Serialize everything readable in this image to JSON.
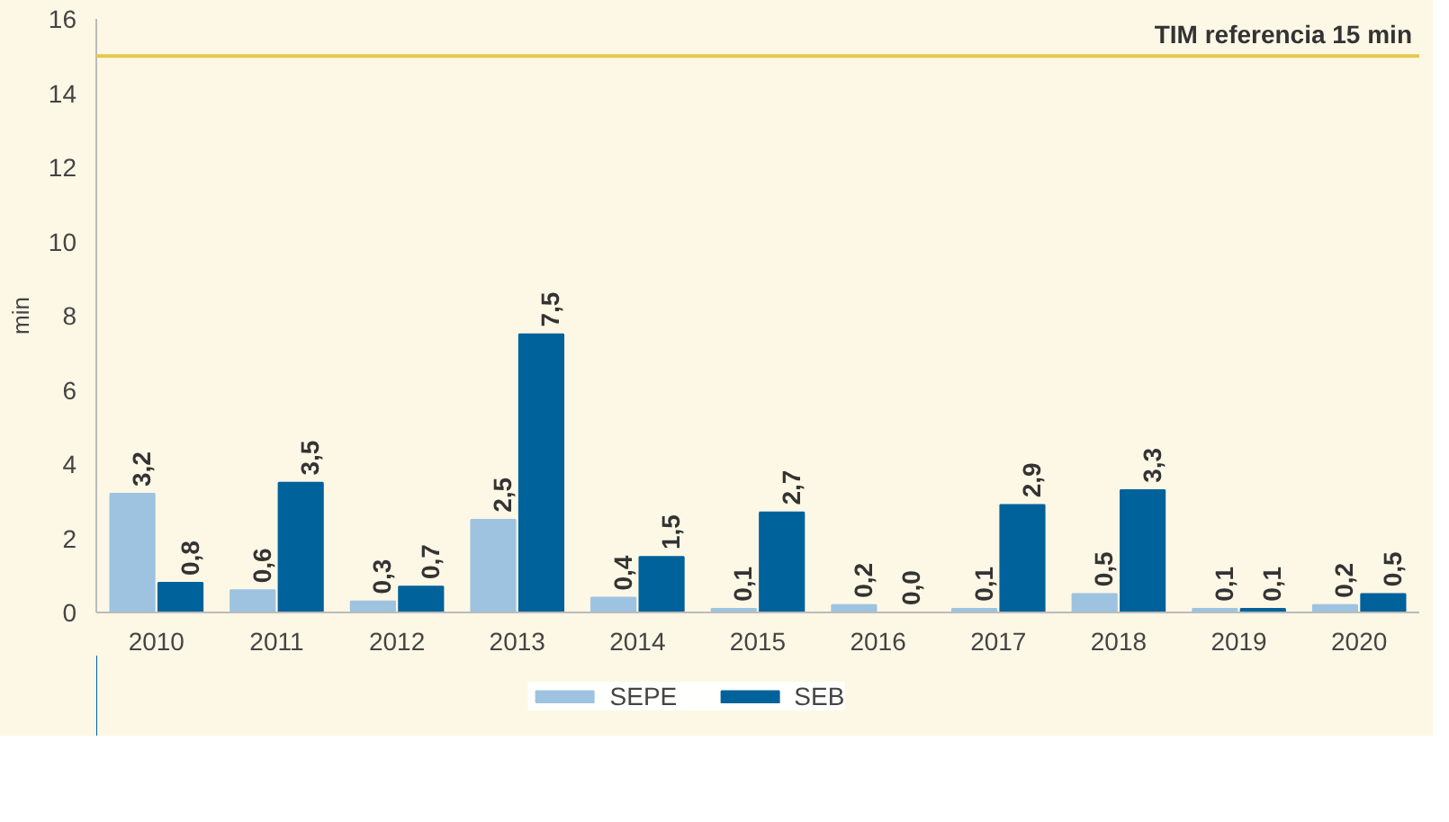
{
  "chart_data": {
    "type": "bar",
    "ylabel": "min",
    "categories": [
      "2010",
      "2011",
      "2012",
      "2013",
      "2014",
      "2015",
      "2016",
      "2017",
      "2018",
      "2019",
      "2020"
    ],
    "series": [
      {
        "name": "SEPE",
        "color": "#9dc3e0",
        "values": [
          3.2,
          0.6,
          0.3,
          2.5,
          0.4,
          0.1,
          0.2,
          0.1,
          0.5,
          0.1,
          0.2
        ],
        "value_labels": [
          "3,2",
          "0,6",
          "0,3",
          "2,5",
          "0,4",
          "0,1",
          "0,2",
          "0,1",
          "0,5",
          "0,1",
          "0,2"
        ]
      },
      {
        "name": "SEB",
        "color": "#00629b",
        "values": [
          0.8,
          3.5,
          0.7,
          7.5,
          1.5,
          2.7,
          0.0,
          2.9,
          3.3,
          0.1,
          0.5
        ],
        "value_labels": [
          "0,8",
          "3,5",
          "0,7",
          "7,5",
          "1,5",
          "2,7",
          "0,0",
          "2,9",
          "3,3",
          "0,1",
          "0,5"
        ]
      }
    ],
    "ylim": [
      0,
      16
    ],
    "yticks": [
      0,
      2,
      4,
      6,
      8,
      10,
      12,
      14,
      16
    ],
    "ref_lines": [
      {
        "axis": "y",
        "value": 15,
        "label": "TIM referencia 15 min",
        "color": "#e8c84c"
      }
    ],
    "grid": false,
    "legend": "bottom"
  }
}
